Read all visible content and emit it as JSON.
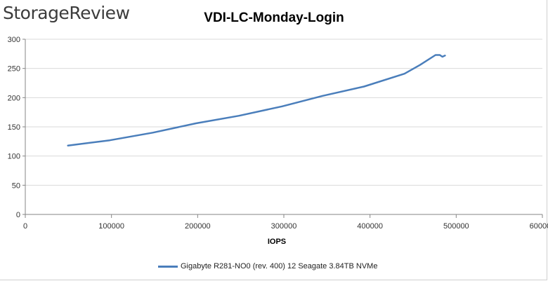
{
  "brand": {
    "logo_text": "StorageReview"
  },
  "chart_data": {
    "type": "line",
    "title": "VDI-LC-Monday-Login",
    "xlabel": "IOPS",
    "ylabel": "",
    "xlim": [
      0,
      600000
    ],
    "ylim": [
      0,
      300
    ],
    "x_ticks": [
      0,
      100000,
      200000,
      300000,
      400000,
      500000,
      600000
    ],
    "y_ticks": [
      0,
      50,
      100,
      150,
      200,
      250,
      300
    ],
    "x_tick_labels": [
      "0",
      "100000",
      "200000",
      "300000",
      "400000",
      "500000",
      "600000"
    ],
    "y_tick_labels": [
      "0",
      "50",
      "100",
      "150",
      "200",
      "250",
      "300"
    ],
    "grid": {
      "horizontal": true,
      "vertical": false
    },
    "legend_position": "bottom",
    "series": [
      {
        "name": "Gigabyte R281-NO0 (rev. 400) 12 Seagate 3.84TB NVMe",
        "color": "#4a7ebb",
        "points": [
          [
            49500,
            118
          ],
          [
            98000,
            127
          ],
          [
            148000,
            140
          ],
          [
            198000,
            156
          ],
          [
            248000,
            169
          ],
          [
            298000,
            185
          ],
          [
            345000,
            203
          ],
          [
            393000,
            219
          ],
          [
            440000,
            241
          ],
          [
            458000,
            256
          ],
          [
            476000,
            273
          ],
          [
            481000,
            273
          ],
          [
            484000,
            270
          ],
          [
            487000,
            272
          ]
        ]
      }
    ]
  }
}
